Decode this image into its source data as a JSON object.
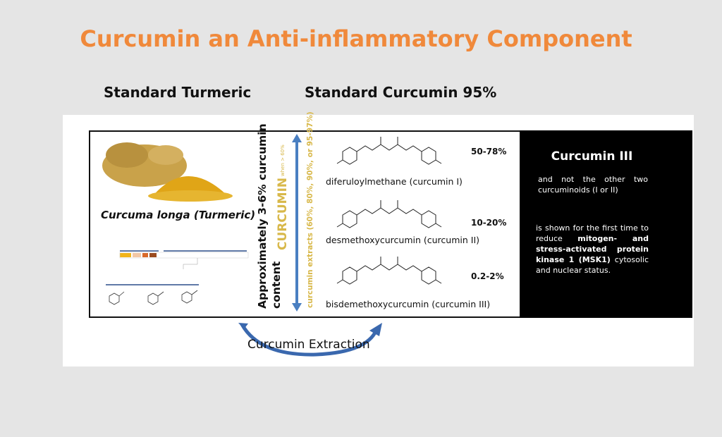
{
  "title": "Curcumin an Anti-inflammatory Component",
  "subtitles": {
    "left": "Standard Turmeric",
    "right": "Standard Curcumin 95%"
  },
  "turmeric": {
    "caption": "Curcuma longa (Turmeric)"
  },
  "vertical": {
    "content_line1": "Approximately 3-6% curcumin",
    "content_line2": "content",
    "curcumin": "CURCUMIN",
    "curcumin_note": "when > 60%",
    "extracts": "curcumin extracts (60%, 80%, 90%, or 95-97%)"
  },
  "molecules": [
    {
      "name": "diferuloylmethane (curcumin I)",
      "percent": "50-78%"
    },
    {
      "name": "desmethoxycurcumin (curcumin II)",
      "percent": "10-20%"
    },
    {
      "name": "bisdemethoxycurcumin (curcumin III)",
      "percent": "0.2-2%"
    }
  ],
  "black_panel": {
    "heading": "Curcumin III",
    "p1": "and not the other two curcuminoids (I or II)",
    "p2_a": "is shown for the first time to reduce ",
    "p2_bold": "mitogen- and stress-activated protein kinase 1 (MSK1)",
    "p2_b": " cytosolic and nuclear status."
  },
  "extraction_label": "Curcumin Extraction",
  "colors": {
    "title": "#f0893b",
    "arrow": "#4a7fc1",
    "curcumin_text": "#d8b84a"
  }
}
